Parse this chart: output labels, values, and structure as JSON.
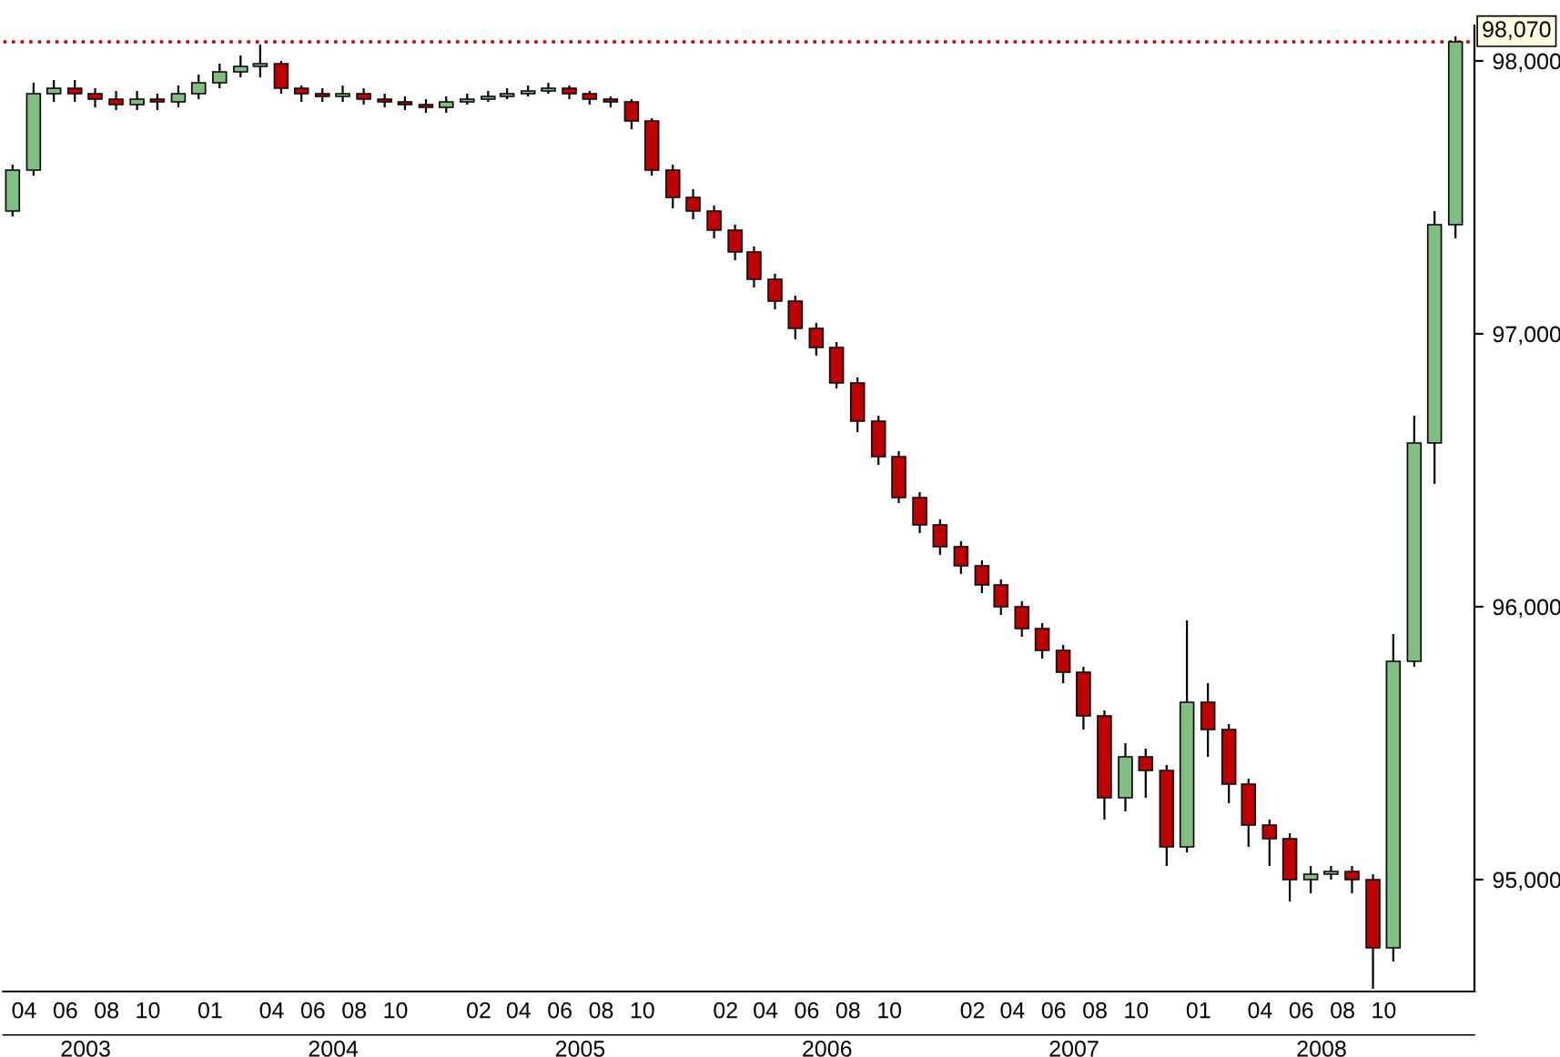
{
  "chart_data": {
    "type": "candlestick",
    "x": [
      "2003-03-15",
      "2003-04-15",
      "2003-05-15",
      "2003-06-15",
      "2003-07-15",
      "2003-08-15",
      "2003-09-15",
      "2003-10-15",
      "2003-11-15",
      "2003-12-15",
      "2004-01-15",
      "2004-02-15",
      "2004-03-15",
      "2004-04-15",
      "2004-05-15",
      "2004-06-15",
      "2004-07-15",
      "2004-08-15",
      "2004-09-15",
      "2004-10-15",
      "2004-11-15",
      "2004-12-15",
      "2005-01-15",
      "2005-02-15",
      "2005-03-15",
      "2005-04-15",
      "2005-05-15",
      "2005-06-15",
      "2005-07-15",
      "2005-08-15",
      "2005-09-15",
      "2005-10-15",
      "2005-11-15",
      "2005-12-15",
      "2006-01-15",
      "2006-02-15",
      "2006-03-15",
      "2006-04-15",
      "2006-05-15",
      "2006-06-15",
      "2006-07-15",
      "2006-08-15",
      "2006-09-15",
      "2006-10-15",
      "2006-11-15",
      "2006-12-15",
      "2007-01-15",
      "2007-02-15",
      "2007-03-15",
      "2007-04-15",
      "2007-05-15",
      "2007-06-15",
      "2007-07-15",
      "2007-08-15",
      "2007-09-15",
      "2007-10-15",
      "2007-11-15",
      "2007-12-15",
      "2008-01-15",
      "2008-02-15",
      "2008-03-15",
      "2008-04-15",
      "2008-05-15",
      "2008-06-15",
      "2008-07-15",
      "2008-08-15",
      "2008-09-15",
      "2008-10-15",
      "2008-11-15",
      "2008-12-15",
      "2009-01-15"
    ],
    "ohlc": [
      [
        97450,
        97620,
        97430,
        97600
      ],
      [
        97600,
        97920,
        97580,
        97880
      ],
      [
        97880,
        97930,
        97850,
        97900
      ],
      [
        97900,
        97930,
        97850,
        97880
      ],
      [
        97880,
        97900,
        97830,
        97860
      ],
      [
        97860,
        97890,
        97820,
        97840
      ],
      [
        97840,
        97890,
        97820,
        97860
      ],
      [
        97860,
        97880,
        97820,
        97850
      ],
      [
        97850,
        97910,
        97830,
        97880
      ],
      [
        97880,
        97950,
        97860,
        97920
      ],
      [
        97920,
        97990,
        97900,
        97960
      ],
      [
        97960,
        98020,
        97940,
        97980
      ],
      [
        97980,
        98060,
        97940,
        97990
      ],
      [
        97990,
        98000,
        97880,
        97900
      ],
      [
        97900,
        97910,
        97850,
        97880
      ],
      [
        97880,
        97900,
        97850,
        97870
      ],
      [
        97870,
        97910,
        97850,
        97880
      ],
      [
        97880,
        97900,
        97840,
        97860
      ],
      [
        97860,
        97880,
        97830,
        97850
      ],
      [
        97850,
        97870,
        97820,
        97840
      ],
      [
        97840,
        97860,
        97810,
        97830
      ],
      [
        97830,
        97870,
        97810,
        97850
      ],
      [
        97850,
        97880,
        97840,
        97860
      ],
      [
        97860,
        97890,
        97850,
        97870
      ],
      [
        97870,
        97900,
        97860,
        97880
      ],
      [
        97880,
        97910,
        97870,
        97890
      ],
      [
        97890,
        97920,
        97880,
        97900
      ],
      [
        97900,
        97910,
        97860,
        97880
      ],
      [
        97880,
        97890,
        97840,
        97860
      ],
      [
        97860,
        97870,
        97830,
        97850
      ],
      [
        97850,
        97860,
        97750,
        97780
      ],
      [
        97780,
        97790,
        97580,
        97600
      ],
      [
        97600,
        97620,
        97460,
        97500
      ],
      [
        97500,
        97530,
        97420,
        97450
      ],
      [
        97450,
        97470,
        97350,
        97380
      ],
      [
        97380,
        97400,
        97270,
        97300
      ],
      [
        97300,
        97320,
        97170,
        97200
      ],
      [
        97200,
        97220,
        97090,
        97120
      ],
      [
        97120,
        97140,
        96980,
        97020
      ],
      [
        97020,
        97040,
        96920,
        96950
      ],
      [
        96950,
        96970,
        96800,
        96820
      ],
      [
        96820,
        96840,
        96640,
        96680
      ],
      [
        96680,
        96700,
        96520,
        96550
      ],
      [
        96550,
        96570,
        96380,
        96400
      ],
      [
        96400,
        96420,
        96270,
        96300
      ],
      [
        96300,
        96320,
        96190,
        96220
      ],
      [
        96220,
        96240,
        96120,
        96150
      ],
      [
        96150,
        96170,
        96050,
        96080
      ],
      [
        96080,
        96100,
        95970,
        96000
      ],
      [
        96000,
        96020,
        95890,
        95920
      ],
      [
        95920,
        95940,
        95810,
        95840
      ],
      [
        95840,
        95860,
        95720,
        95760
      ],
      [
        95760,
        95780,
        95550,
        95600
      ],
      [
        95600,
        95620,
        95220,
        95300
      ],
      [
        95300,
        95500,
        95250,
        95450
      ],
      [
        95450,
        95480,
        95300,
        95400
      ],
      [
        95400,
        95420,
        95050,
        95120
      ],
      [
        95120,
        95950,
        95100,
        95650
      ],
      [
        95650,
        95720,
        95450,
        95550
      ],
      [
        95550,
        95570,
        95280,
        95350
      ],
      [
        95350,
        95370,
        95120,
        95200
      ],
      [
        95200,
        95220,
        95050,
        95150
      ],
      [
        95150,
        95170,
        94920,
        95000
      ],
      [
        95000,
        95050,
        94950,
        95020
      ],
      [
        95020,
        95050,
        95000,
        95030
      ],
      [
        95030,
        95050,
        94950,
        95000
      ],
      [
        95000,
        95020,
        94600,
        94750
      ],
      [
        94750,
        95900,
        94700,
        95800
      ],
      [
        95800,
        96700,
        95780,
        96600
      ],
      [
        96600,
        97450,
        96450,
        97400
      ],
      [
        97400,
        98090,
        97350,
        98070
      ]
    ],
    "xlim": [
      "2003-03-01",
      "2009-02-12"
    ],
    "xticks": [
      {
        "value": "2003-04-01",
        "label": "04"
      },
      {
        "value": "2003-06-01",
        "label": "06"
      },
      {
        "value": "2003-08-01",
        "label": "08"
      },
      {
        "value": "2003-10-01",
        "label": "10"
      },
      {
        "value": "2004-01-01",
        "label": "01"
      },
      {
        "value": "2004-04-01",
        "label": "04"
      },
      {
        "value": "2004-06-01",
        "label": "06"
      },
      {
        "value": "2004-08-01",
        "label": "08"
      },
      {
        "value": "2004-10-01",
        "label": "10"
      },
      {
        "value": "2005-02-01",
        "label": "02"
      },
      {
        "value": "2005-04-01",
        "label": "04"
      },
      {
        "value": "2005-06-01",
        "label": "06"
      },
      {
        "value": "2005-08-01",
        "label": "08"
      },
      {
        "value": "2005-10-01",
        "label": "10"
      },
      {
        "value": "2006-02-01",
        "label": "02"
      },
      {
        "value": "2006-04-01",
        "label": "04"
      },
      {
        "value": "2006-06-01",
        "label": "06"
      },
      {
        "value": "2006-08-01",
        "label": "08"
      },
      {
        "value": "2006-10-01",
        "label": "10"
      },
      {
        "value": "2007-02-01",
        "label": "02"
      },
      {
        "value": "2007-04-01",
        "label": "04"
      },
      {
        "value": "2007-06-01",
        "label": "06"
      },
      {
        "value": "2007-08-01",
        "label": "08"
      },
      {
        "value": "2007-10-01",
        "label": "10"
      },
      {
        "value": "2008-01-01",
        "label": "01"
      },
      {
        "value": "2008-04-01",
        "label": "04"
      },
      {
        "value": "2008-06-01",
        "label": "06"
      },
      {
        "value": "2008-08-01",
        "label": "08"
      },
      {
        "value": "2008-10-01",
        "label": "10"
      }
    ],
    "x2lim": [
      "2003-03-01",
      "2009-02-12"
    ],
    "x2ticks": [
      {
        "value": "2003-07-01",
        "label": "2003"
      },
      {
        "value": "2004-07-01",
        "label": "2004"
      },
      {
        "value": "2005-07-01",
        "label": "2005"
      },
      {
        "value": "2006-07-01",
        "label": "2006"
      },
      {
        "value": "2007-07-01",
        "label": "2007"
      },
      {
        "value": "2008-07-01",
        "label": "2008"
      }
    ],
    "ylim": [
      94590,
      98130
    ],
    "yticks": [
      {
        "value": 95000,
        "label": "95,000"
      },
      {
        "value": 96000,
        "label": "96,000"
      },
      {
        "value": 97000,
        "label": "97,000"
      },
      {
        "value": 98000,
        "label": "98,000"
      }
    ],
    "ref_lines": [
      {
        "axis": "y",
        "value": 98070,
        "label": "98,070",
        "color": "#cc0000",
        "line_style": "dotted"
      }
    ],
    "grid": false
  }
}
